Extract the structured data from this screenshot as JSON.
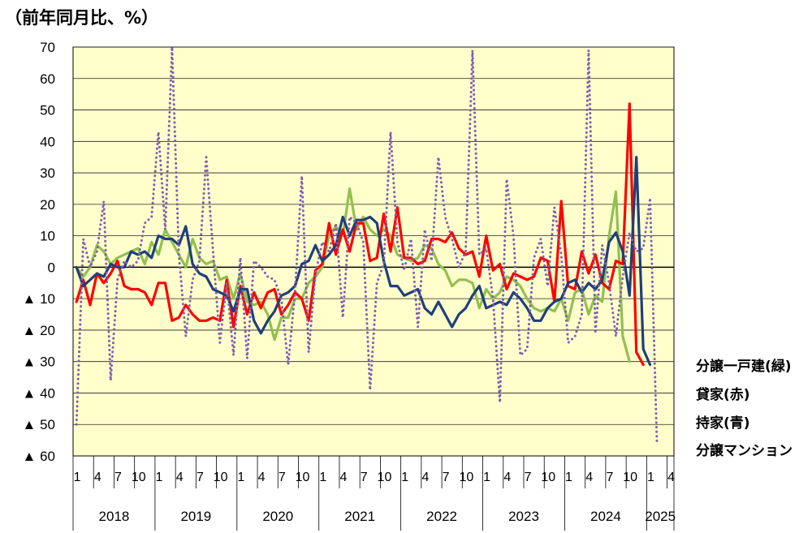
{
  "unit_label": "（前年同月比、%）",
  "legend": {
    "s_green": "分譲一戸建(緑)",
    "s_red": "貸家(赤)",
    "s_blue": "持家(青)",
    "s_purple": "分譲マンション"
  },
  "colors": {
    "plot_bg": "#FFFFCC",
    "green": "#92C050",
    "red": "#FF0000",
    "blue": "#1F3F7A",
    "purple": "#7F5FAF"
  },
  "chart_data": {
    "type": "line",
    "ylim": [
      -60,
      70
    ],
    "yticks": [
      70,
      60,
      50,
      40,
      30,
      20,
      10,
      0,
      -10,
      -20,
      -30,
      -40,
      -50,
      -60
    ],
    "ytick_labels": [
      "70",
      "60",
      "50",
      "40",
      "30",
      "20",
      "10",
      "0",
      "▲ 10",
      "▲ 20",
      "▲ 30",
      "▲ 40",
      "▲ 50",
      "▲ 60"
    ],
    "grid": "horizontal",
    "month_ticks": [
      "1",
      "4",
      "7",
      "10",
      "1",
      "4",
      "7",
      "10",
      "1",
      "4",
      "7",
      "10",
      "1",
      "4",
      "7",
      "10",
      "1",
      "4",
      "7",
      "10",
      "1",
      "4",
      "7",
      "10",
      "1",
      "4",
      "7",
      "10",
      "1",
      "4"
    ],
    "years": [
      "2018",
      "2019",
      "2020",
      "2021",
      "2022",
      "2023",
      "2024",
      "2025"
    ],
    "x_start": "2018-01",
    "series": [
      {
        "name": "分譲一戸建(緑)",
        "color": "green",
        "dash": "solid",
        "values": [
          0,
          -3,
          0,
          7,
          5,
          1,
          3,
          4,
          5,
          6,
          1,
          8,
          4,
          12,
          8,
          4,
          0,
          9,
          3,
          1,
          2,
          -4,
          -3,
          -10,
          -2,
          -11,
          -12,
          -11,
          -15,
          -23,
          -16,
          -16,
          -10,
          -10,
          -5,
          -3,
          0,
          10,
          13,
          10,
          25,
          12,
          16,
          12,
          10,
          12,
          10,
          4,
          3,
          2,
          3,
          7,
          6,
          1,
          -1,
          -6,
          -4,
          -4,
          -5,
          -13,
          -7,
          -10,
          -8,
          -3,
          -4,
          -6,
          -10,
          -13,
          -14,
          -13,
          -14,
          -10,
          -17,
          -8,
          -7,
          -15,
          -9,
          -11,
          10,
          24,
          -22,
          -30
        ],
        "anchor": {
          "month": 88,
          "label": "分譲一戸建(緑)"
        }
      },
      {
        "name": "貸家(赤)",
        "color": "red",
        "dash": "solid",
        "values": [
          -11,
          -4,
          -12,
          -2,
          -5,
          -2,
          2,
          -6,
          -7,
          -7,
          -8,
          -12,
          -5,
          -5,
          -17,
          -16,
          -12,
          -15,
          -17,
          -17,
          -16,
          -17,
          -4,
          -19,
          -6,
          -15,
          -8,
          -13,
          -8,
          -7,
          -15,
          -12,
          -8,
          -10,
          -17,
          -1,
          1,
          14,
          4,
          12,
          5,
          14,
          14,
          2,
          3,
          17,
          5,
          19,
          3,
          3,
          1,
          2,
          9,
          9,
          8,
          11,
          6,
          4,
          5,
          -3,
          10,
          -1,
          1,
          -7,
          -2,
          -3,
          -4,
          -3,
          3,
          2,
          -11,
          21,
          -6,
          -7,
          5,
          -2,
          4,
          -5,
          -7,
          2,
          1,
          52,
          -27,
          -31
        ],
        "anchor": {
          "month": 90,
          "label": "貸家(赤)"
        }
      },
      {
        "name": "持家(青)",
        "color": "blue",
        "dash": "solid",
        "values": [
          0,
          -6,
          -4,
          -2,
          -3,
          1,
          0,
          0,
          5,
          4,
          5,
          3,
          10,
          9,
          9,
          7,
          13,
          1,
          -2,
          -3,
          -7,
          -8,
          -9,
          -14,
          -7,
          -7,
          -17,
          -21,
          -17,
          -14,
          -9,
          -8,
          -6,
          1,
          2,
          7,
          2,
          4,
          7,
          16,
          10,
          15,
          15,
          16,
          14,
          2,
          -6,
          -6,
          -9,
          -8,
          -7,
          -13,
          -15,
          -11,
          -15,
          -19,
          -15,
          -13,
          -9,
          -6,
          -13,
          -12,
          -11,
          -12,
          -8,
          -10,
          -13,
          -17,
          -17,
          -13,
          -11,
          -10,
          -5,
          -4,
          -8,
          -5,
          -7,
          -4,
          8,
          11,
          5,
          -9,
          35,
          -26,
          -31
        ],
        "anchor": {
          "month": 92,
          "label": "持家(青)"
        }
      },
      {
        "name": "分譲マンション",
        "color": "purple",
        "dash": "dotted",
        "values": [
          -50,
          9,
          0,
          5,
          21,
          -36,
          -4,
          2,
          0,
          2,
          14,
          16,
          43,
          12,
          70,
          4,
          -22,
          -4,
          2,
          35,
          5,
          -24,
          -5,
          -28,
          3,
          -29,
          2,
          0,
          -3,
          -4,
          -10,
          -31,
          -8,
          29,
          -27,
          -2,
          8,
          5,
          14,
          -16,
          16,
          14,
          8,
          -39,
          -5,
          1,
          43,
          8,
          -1,
          9,
          -19,
          12,
          2,
          35,
          16,
          9,
          0,
          5,
          69,
          4,
          6,
          -10,
          -43,
          28,
          10,
          -28,
          -26,
          3,
          9,
          -6,
          19,
          4,
          -24,
          -22,
          -15,
          69,
          -21,
          7,
          -5,
          -22,
          -3,
          11,
          5,
          6,
          22,
          -56
        ],
        "anchor": {
          "month": 94,
          "label": "分譲マンション"
        }
      }
    ]
  }
}
